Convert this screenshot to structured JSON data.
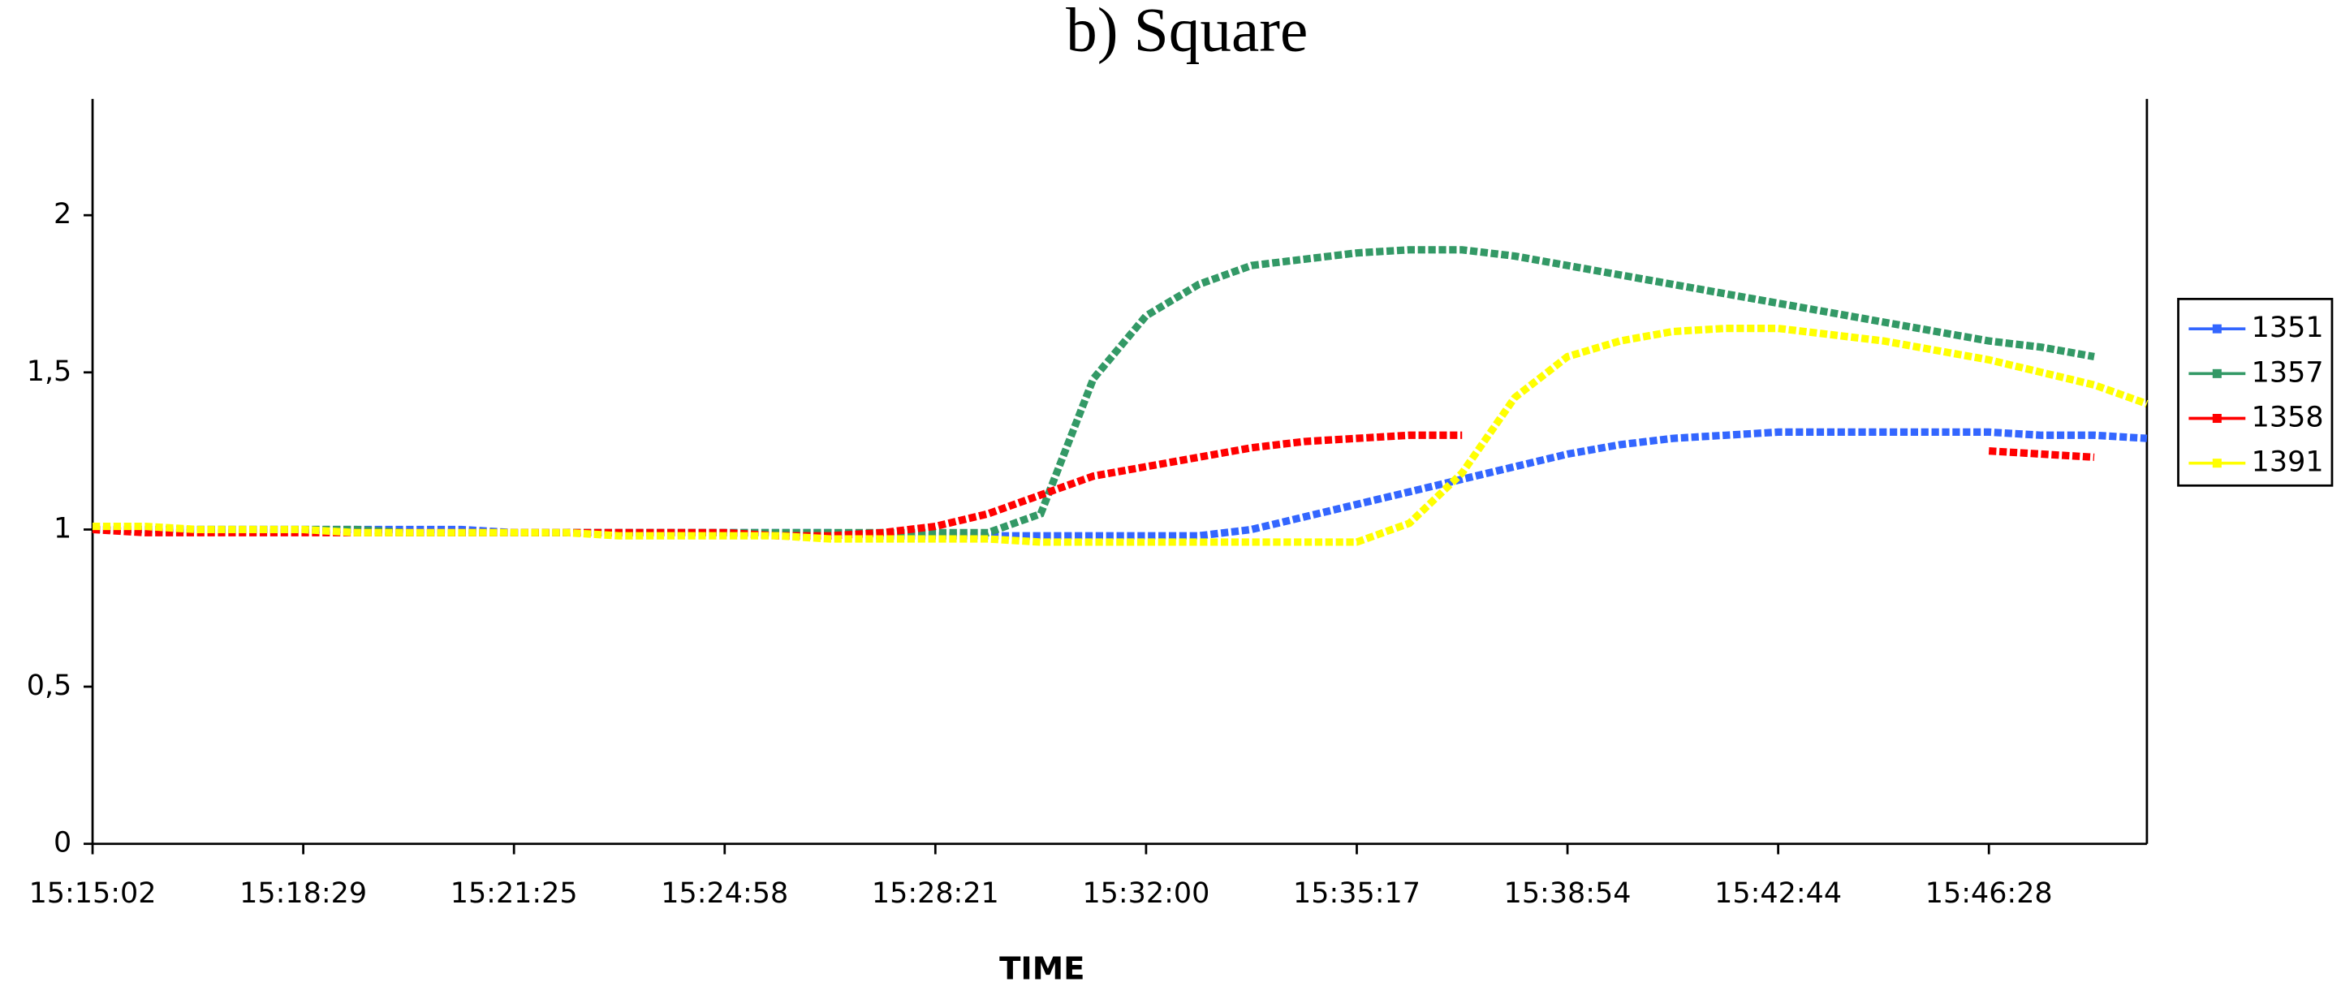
{
  "chart_data": {
    "type": "line",
    "title": "b) Square",
    "x_label": "TIME",
    "categories": [
      "15:15:02",
      null,
      null,
      null,
      "15:18:29",
      null,
      null,
      null,
      "15:21:25",
      null,
      null,
      null,
      "15:24:58",
      null,
      null,
      null,
      "15:28:21",
      null,
      null,
      null,
      "15:32:00",
      null,
      null,
      null,
      "15:35:17",
      null,
      null,
      null,
      "15:38:54",
      null,
      null,
      null,
      "15:42:44",
      null,
      null,
      null,
      "15:46:28",
      null,
      null,
      null
    ],
    "series": [
      {
        "name": "1351",
        "color": "#3366ff",
        "values": [
          1.0,
          1.0,
          1.0,
          1.0,
          1.0,
          1.0,
          1.0,
          1.0,
          0.99,
          0.99,
          0.99,
          0.99,
          0.99,
          0.99,
          0.99,
          0.98,
          0.98,
          0.98,
          0.98,
          0.98,
          0.98,
          0.98,
          1.0,
          1.04,
          1.08,
          1.12,
          1.16,
          1.2,
          1.24,
          1.27,
          1.29,
          1.3,
          1.31,
          1.31,
          1.31,
          1.31,
          1.31,
          1.3,
          1.3,
          1.29
        ]
      },
      {
        "name": "1357",
        "color": "#339966",
        "values": [
          1.0,
          1.0,
          1.0,
          1.0,
          1.0,
          1.0,
          0.99,
          0.99,
          0.99,
          0.99,
          0.99,
          0.99,
          0.99,
          0.99,
          0.99,
          0.99,
          0.99,
          0.99,
          1.05,
          1.48,
          1.68,
          1.78,
          1.84,
          1.86,
          1.88,
          1.89,
          1.89,
          1.87,
          1.84,
          1.81,
          1.78,
          1.75,
          1.72,
          1.69,
          1.66,
          1.63,
          1.6,
          1.58,
          1.55,
          null
        ]
      },
      {
        "name": "1358",
        "color": "#ff0000",
        "values": [
          1.0,
          0.99,
          0.99,
          0.99,
          0.99,
          0.99,
          0.99,
          0.99,
          0.99,
          0.99,
          0.99,
          0.99,
          0.99,
          0.98,
          0.98,
          0.99,
          1.01,
          1.05,
          1.11,
          1.17,
          1.2,
          1.23,
          1.26,
          1.28,
          1.29,
          1.3,
          1.3,
          null,
          null,
          null,
          null,
          null,
          null,
          null,
          null,
          null,
          1.25,
          1.24,
          1.23,
          null
        ]
      },
      {
        "name": "1391",
        "color": "#ffff00",
        "values": [
          1.01,
          1.01,
          1.0,
          1.0,
          1.0,
          0.99,
          0.99,
          0.99,
          0.99,
          0.99,
          0.98,
          0.98,
          0.98,
          0.98,
          0.97,
          0.97,
          0.97,
          0.97,
          0.96,
          0.96,
          0.96,
          0.96,
          0.96,
          0.96,
          0.96,
          1.02,
          1.18,
          1.42,
          1.55,
          1.6,
          1.63,
          1.64,
          1.64,
          1.62,
          1.6,
          1.57,
          1.54,
          1.5,
          1.46,
          1.4
        ]
      }
    ],
    "ylim": [
      0,
      2.37
    ],
    "yticks": [
      0,
      {
        "value": 0.5,
        "label": "0,5"
      },
      1,
      {
        "value": 1.5,
        "label": "1,5"
      },
      2
    ],
    "legend": "right"
  }
}
